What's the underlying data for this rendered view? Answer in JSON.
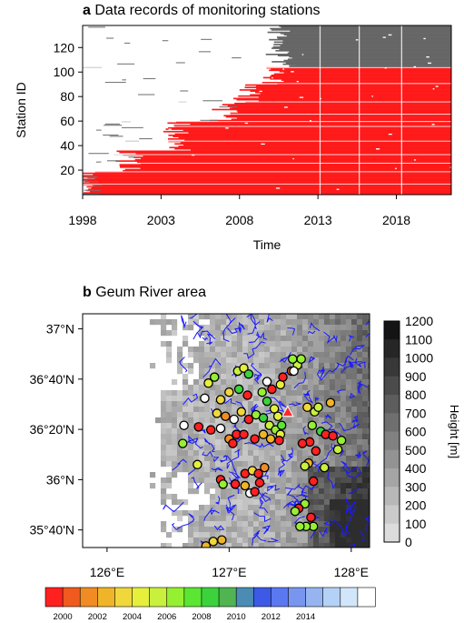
{
  "panel_a": {
    "letter": "a",
    "title": "Data records of monitoring stations",
    "colors": {
      "red": "#ff1a1a",
      "gray": "#666666"
    }
  },
  "panel_b": {
    "letter": "b",
    "title": "Geum River area",
    "height_label": "Height [m]",
    "colors": {
      "river": "#1a1aff",
      "dem": "#b4b4b4",
      "marker": "#ff2a2a"
    }
  },
  "chart_data": [
    {
      "type": "heatmap",
      "title": "Data records of monitoring stations",
      "xlabel": "Time",
      "ylabel": "Station ID",
      "xlim": [
        1998,
        2021.5
      ],
      "ylim": [
        0,
        138
      ],
      "x_ticks": [
        1998,
        2003,
        2008,
        2013,
        2018
      ],
      "y_ticks": [
        20,
        40,
        60,
        80,
        100,
        120
      ],
      "series": [
        {
          "color": "#ff1a1a",
          "ranges": [
            [
              1,
              19,
              1998
            ],
            [
              20,
              36,
              2001
            ],
            [
              37,
              60,
              2004
            ],
            [
              61,
              75,
              2007
            ],
            [
              76,
              90,
              2008.5
            ],
            [
              91,
              104,
              2010
            ]
          ]
        },
        {
          "color": "#666666",
          "ranges": [
            [
              105,
              138,
              2010.5
            ]
          ]
        }
      ]
    },
    {
      "type": "scatter",
      "title": "Geum River area",
      "x_ticks": [
        "126°E",
        "127°E",
        "128°E"
      ],
      "y_ticks": [
        "37°N",
        "36°40'N",
        "36°20'N",
        "36°N",
        "35°40'N"
      ],
      "colorbar": {
        "label": "Height [m]",
        "ticks": [
          "1200",
          "1100",
          "1000",
          "900",
          "800",
          "700",
          "600",
          "500",
          "400",
          "300",
          "200",
          "100",
          "0"
        ]
      },
      "color_legend": {
        "labels": [
          "2000",
          "2002",
          "2004",
          "2006",
          "2008",
          "2010",
          "2012",
          "2014"
        ],
        "colors": [
          "#ff2020",
          "#f05a1e",
          "#f08c23",
          "#f0b428",
          "#f0d73c",
          "#e6f03c",
          "#c8f03c",
          "#96f032",
          "#5ae632",
          "#3cd23c",
          "#50b450",
          "#4b8cb4",
          "#3c5ae6",
          "#5a78f0",
          "#7896f0",
          "#96b4f0",
          "#b4d2f5",
          "#d2e6fa",
          "#ffffff"
        ]
      },
      "stations": [
        [
          127.07,
          36.72,
          6
        ],
        [
          127.12,
          36.74,
          5
        ],
        [
          127.16,
          36.7,
          9
        ],
        [
          126.83,
          36.64,
          5
        ],
        [
          126.88,
          36.68,
          7
        ],
        [
          126.8,
          36.54,
          10
        ],
        [
          126.93,
          36.53,
          4
        ],
        [
          127.0,
          36.58,
          4
        ],
        [
          127.08,
          36.6,
          9
        ],
        [
          127.15,
          36.56,
          0
        ],
        [
          127.31,
          36.65,
          11
        ],
        [
          127.27,
          36.58,
          7
        ],
        [
          127.31,
          36.52,
          9
        ],
        [
          127.35,
          36.6,
          0
        ],
        [
          127.42,
          36.63,
          5
        ],
        [
          127.44,
          36.68,
          0
        ],
        [
          127.51,
          36.72,
          1
        ],
        [
          127.56,
          36.76,
          6
        ],
        [
          127.59,
          36.8,
          7
        ],
        [
          127.52,
          36.8,
          7
        ],
        [
          127.53,
          36.72,
          10
        ],
        [
          126.9,
          36.44,
          4
        ],
        [
          126.97,
          36.42,
          2
        ],
        [
          127.04,
          36.4,
          10
        ],
        [
          127.1,
          36.45,
          4
        ],
        [
          127.16,
          36.4,
          0
        ],
        [
          126.75,
          36.35,
          0
        ],
        [
          126.85,
          36.33,
          0
        ],
        [
          126.93,
          36.34,
          11
        ],
        [
          127.0,
          36.27,
          2
        ],
        [
          127.06,
          36.3,
          0
        ],
        [
          127.12,
          36.3,
          0
        ],
        [
          127.03,
          36.24,
          0
        ],
        [
          126.63,
          36.36,
          11
        ],
        [
          126.62,
          36.24,
          7
        ],
        [
          127.22,
          36.43,
          7
        ],
        [
          127.28,
          36.41,
          9
        ],
        [
          127.37,
          36.47,
          5
        ],
        [
          127.4,
          36.42,
          5
        ],
        [
          127.33,
          36.36,
          6
        ],
        [
          127.38,
          36.33,
          7
        ],
        [
          127.43,
          36.36,
          8
        ],
        [
          127.42,
          36.3,
          5
        ],
        [
          127.28,
          36.3,
          3
        ],
        [
          127.34,
          36.27,
          3
        ],
        [
          127.41,
          36.26,
          0
        ],
        [
          127.21,
          36.27,
          0
        ],
        [
          127.64,
          36.48,
          4
        ],
        [
          127.7,
          36.45,
          6
        ],
        [
          127.73,
          36.48,
          6
        ],
        [
          127.83,
          36.51,
          3
        ],
        [
          127.68,
          36.36,
          7
        ],
        [
          127.75,
          36.32,
          9
        ],
        [
          127.79,
          36.3,
          0
        ],
        [
          127.66,
          36.25,
          0
        ],
        [
          127.71,
          36.19,
          0
        ],
        [
          127.6,
          36.24,
          0
        ],
        [
          127.85,
          36.29,
          0
        ],
        [
          127.92,
          36.26,
          7
        ],
        [
          127.89,
          36.2,
          6
        ],
        [
          127.65,
          36.11,
          3
        ],
        [
          127.62,
          36.09,
          6
        ],
        [
          127.78,
          36.08,
          6
        ],
        [
          127.13,
          36.04,
          0
        ],
        [
          127.19,
          36.06,
          4
        ],
        [
          127.24,
          36.04,
          0
        ],
        [
          127.29,
          36.08,
          2
        ],
        [
          127.25,
          35.98,
          0
        ],
        [
          127.05,
          35.97,
          0
        ],
        [
          126.93,
          36.0,
          0
        ],
        [
          126.95,
          35.97,
          7
        ],
        [
          127.17,
          35.91,
          10
        ],
        [
          127.21,
          35.92,
          0
        ],
        [
          126.74,
          36.1,
          5
        ],
        [
          127.13,
          35.96,
          3
        ],
        [
          127.69,
          35.99,
          0
        ],
        [
          127.62,
          35.84,
          7
        ],
        [
          127.57,
          35.81,
          0
        ],
        [
          127.54,
          35.79,
          7
        ],
        [
          127.67,
          35.75,
          0
        ],
        [
          127.69,
          35.69,
          7
        ],
        [
          127.63,
          35.69,
          7
        ],
        [
          127.58,
          35.69,
          7
        ],
        [
          126.94,
          35.6,
          3
        ],
        [
          126.87,
          35.59,
          4
        ],
        [
          126.81,
          35.56,
          3
        ],
        [
          126.86,
          35.52,
          7
        ]
      ],
      "special_marker": [
        127.48,
        36.45
      ]
    }
  ]
}
